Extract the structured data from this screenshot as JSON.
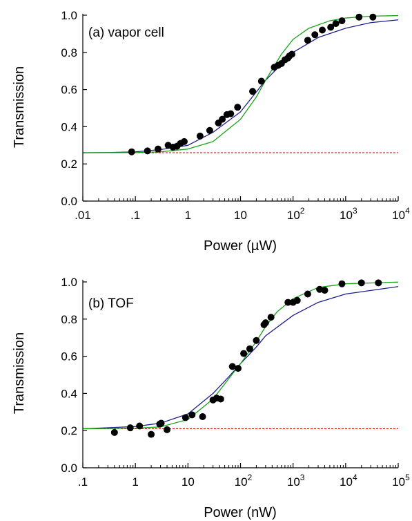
{
  "chart_data": [
    {
      "type": "scatter",
      "annotation": "(a) vapor cell",
      "xlabel": "Power (µW)",
      "ylabel": "Transmission",
      "x_scale": "log",
      "xlim": [
        0.01,
        10000
      ],
      "ylim": [
        0.0,
        1.0
      ],
      "x_ticks": [
        {
          "value": 0.01,
          "base": ".01",
          "exp": ""
        },
        {
          "value": 0.1,
          "base": ".1",
          "exp": ""
        },
        {
          "value": 1,
          "base": "1",
          "exp": ""
        },
        {
          "value": 10,
          "base": "10",
          "exp": ""
        },
        {
          "value": 100,
          "base": "10",
          "exp": "2"
        },
        {
          "value": 1000,
          "base": "10",
          "exp": "3"
        },
        {
          "value": 10000,
          "base": "10",
          "exp": "4"
        }
      ],
      "y_ticks": [
        {
          "value": 0.0,
          "label": "0.0"
        },
        {
          "value": 0.2,
          "label": "0.2"
        },
        {
          "value": 0.4,
          "label": "0.4"
        },
        {
          "value": 0.6,
          "label": "0.6"
        },
        {
          "value": 0.8,
          "label": "0.8"
        },
        {
          "value": 1.0,
          "label": "1.0"
        }
      ],
      "baseline": 0.26,
      "colors": {
        "points": "#000000",
        "fit_blue": "#1c1c8c",
        "fit_green": "#16a316",
        "baseline": "#cc0000"
      },
      "series": [
        {
          "role": "data",
          "x": [
            0.085,
            0.17,
            0.27,
            0.42,
            0.52,
            0.62,
            0.72,
            0.85,
            1.7,
            2.6,
            3.8,
            4.5,
            5.5,
            6.5,
            8.8,
            17,
            25,
            44,
            52,
            60,
            70,
            80,
            85,
            95,
            190,
            260,
            360,
            520,
            650,
            850,
            1800,
            3300
          ],
          "y": [
            0.265,
            0.27,
            0.28,
            0.3,
            0.29,
            0.295,
            0.31,
            0.32,
            0.35,
            0.38,
            0.42,
            0.44,
            0.465,
            0.47,
            0.505,
            0.59,
            0.645,
            0.72,
            0.73,
            0.74,
            0.76,
            0.77,
            0.78,
            0.79,
            0.865,
            0.895,
            0.92,
            0.935,
            0.955,
            0.97,
            0.99,
            0.99
          ]
        },
        {
          "role": "fit",
          "color_key": "fit_blue",
          "x": [
            0.01,
            0.03,
            0.1,
            0.3,
            1,
            3,
            10,
            30,
            100,
            300,
            1000,
            3000,
            10000
          ],
          "y": [
            0.26,
            0.261,
            0.265,
            0.277,
            0.3,
            0.37,
            0.48,
            0.65,
            0.8,
            0.88,
            0.93,
            0.96,
            0.975
          ]
        },
        {
          "role": "fit",
          "color_key": "fit_green",
          "x": [
            0.01,
            0.1,
            0.3,
            1,
            3,
            10,
            20,
            30,
            60,
            100,
            200,
            500,
            1000,
            3000,
            10000
          ],
          "y": [
            0.26,
            0.261,
            0.265,
            0.28,
            0.32,
            0.44,
            0.56,
            0.65,
            0.79,
            0.87,
            0.93,
            0.97,
            0.985,
            0.995,
            0.998
          ]
        }
      ]
    },
    {
      "type": "scatter",
      "annotation": "(b) TOF",
      "xlabel": "Power (nW)",
      "ylabel": "Transmission",
      "x_scale": "log",
      "xlim": [
        0.1,
        100000
      ],
      "ylim": [
        0.0,
        1.0
      ],
      "x_ticks": [
        {
          "value": 0.1,
          "base": ".1",
          "exp": ""
        },
        {
          "value": 1,
          "base": "1",
          "exp": ""
        },
        {
          "value": 10,
          "base": "10",
          "exp": ""
        },
        {
          "value": 100,
          "base": "10",
          "exp": "2"
        },
        {
          "value": 1000,
          "base": "10",
          "exp": "3"
        },
        {
          "value": 10000,
          "base": "10",
          "exp": "4"
        },
        {
          "value": 100000,
          "base": "10",
          "exp": "5"
        }
      ],
      "y_ticks": [
        {
          "value": 0.0,
          "label": "0.0"
        },
        {
          "value": 0.2,
          "label": "0.2"
        },
        {
          "value": 0.4,
          "label": "0.4"
        },
        {
          "value": 0.6,
          "label": "0.6"
        },
        {
          "value": 0.8,
          "label": "0.8"
        },
        {
          "value": 1.0,
          "label": "1.0"
        }
      ],
      "baseline": 0.21,
      "colors": {
        "points": "#000000",
        "fit_blue": "#1c1c8c",
        "fit_green": "#16a316",
        "baseline": "#cc0000"
      },
      "series": [
        {
          "role": "data",
          "x": [
            0.4,
            0.8,
            1.2,
            2,
            2.9,
            3.1,
            4,
            9,
            12,
            19,
            30,
            35,
            42,
            70,
            90,
            115,
            150,
            200,
            280,
            300,
            380,
            800,
            1000,
            1200,
            1900,
            3200,
            4000,
            8500,
            20000,
            42000
          ],
          "y": [
            0.19,
            0.215,
            0.225,
            0.18,
            0.235,
            0.24,
            0.205,
            0.27,
            0.285,
            0.275,
            0.365,
            0.375,
            0.37,
            0.545,
            0.535,
            0.615,
            0.64,
            0.685,
            0.77,
            0.78,
            0.81,
            0.89,
            0.89,
            0.9,
            0.935,
            0.96,
            0.955,
            0.99,
            0.995,
            0.995
          ]
        },
        {
          "role": "fit",
          "color_key": "fit_blue",
          "x": [
            0.1,
            1,
            3,
            10,
            30,
            60,
            100,
            200,
            300,
            1000,
            3000,
            10000,
            100000
          ],
          "y": [
            0.21,
            0.222,
            0.24,
            0.29,
            0.4,
            0.49,
            0.56,
            0.65,
            0.71,
            0.82,
            0.89,
            0.935,
            0.975
          ]
        },
        {
          "role": "fit",
          "color_key": "fit_green",
          "x": [
            0.1,
            1,
            3,
            10,
            30,
            60,
            100,
            200,
            300,
            500,
            1000,
            3000,
            10000,
            100000
          ],
          "y": [
            0.21,
            0.213,
            0.22,
            0.26,
            0.37,
            0.48,
            0.56,
            0.68,
            0.76,
            0.84,
            0.91,
            0.97,
            0.99,
            0.999
          ]
        }
      ]
    }
  ]
}
